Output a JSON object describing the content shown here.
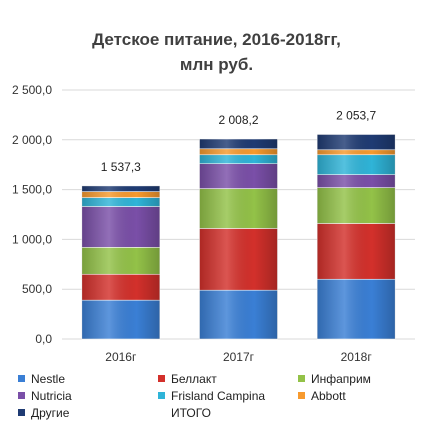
{
  "chart_data": {
    "type": "bar",
    "stacked": true,
    "title": "Детское питание, 2016-2018гг,",
    "subtitle": "млн руб.",
    "categories": [
      "2016г",
      "2017г",
      "2018г"
    ],
    "ylim": [
      0,
      2500
    ],
    "yticks": [
      "0,0",
      "500,0",
      "1 000,0",
      "1 500,0",
      "2 000,0",
      "2 500,0"
    ],
    "grid": true,
    "legend": "bottom",
    "series": [
      {
        "name": "Nestle",
        "color": "#3a7fd5",
        "values": [
          390,
          490,
          600
        ]
      },
      {
        "name": "Беллакт",
        "color": "#d3302b",
        "values": [
          260,
          620,
          560
        ]
      },
      {
        "name": "Инфаприм",
        "color": "#93c248",
        "values": [
          270,
          400,
          360
        ]
      },
      {
        "name": "Nutricia",
        "color": "#7a4fa8",
        "values": [
          410,
          250,
          130
        ]
      },
      {
        "name": "Frisland Campina",
        "color": "#2fb4d8",
        "values": [
          90,
          90,
          200
        ]
      },
      {
        "name": "Abbott",
        "color": "#f79a2e",
        "values": [
          60,
          60,
          50
        ]
      },
      {
        "name": "Другие",
        "color": "#1f3b73",
        "values": [
          57.3,
          98.2,
          153.7
        ]
      }
    ],
    "totals": {
      "name": "ИТОГО",
      "values": [
        1537.3,
        2008.2,
        2053.7
      ],
      "labels": [
        "1 537,3",
        "2 008,2",
        "2 053,7"
      ]
    }
  }
}
